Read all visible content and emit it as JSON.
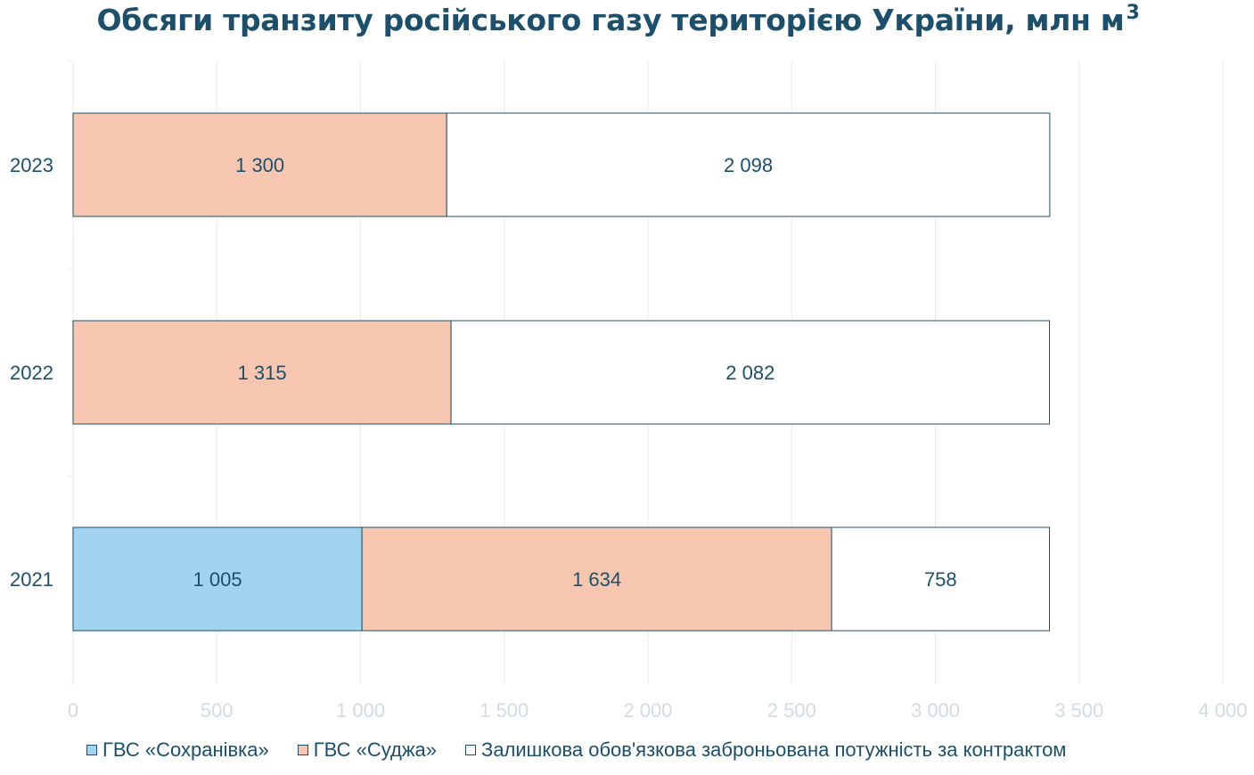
{
  "title": "Обсяги транзиту російського газу територією України, млн м",
  "title_sup": "3",
  "chart_data": {
    "type": "bar",
    "orientation": "horizontal",
    "stacked": true,
    "categories": [
      "2023",
      "2022",
      "2021"
    ],
    "series": [
      {
        "name": "ГВС «Сохранівка»",
        "color": "#a2d3ef",
        "values": [
          0,
          0,
          1005
        ],
        "labels": [
          "",
          "",
          "1 005"
        ]
      },
      {
        "name": "ГВС «Суджа»",
        "color": "#f6c6b0",
        "values": [
          1300,
          1315,
          1634
        ],
        "labels": [
          "1 300",
          "1 315",
          "1 634"
        ]
      },
      {
        "name": "Залишкова обов'язкова заброньована потужність за контрактом",
        "color": "#ffffff",
        "values": [
          2098,
          2082,
          758
        ],
        "labels": [
          "2 098",
          "2 082",
          "758"
        ]
      }
    ],
    "xlim": [
      0,
      4000
    ],
    "xticks": [
      0,
      500,
      1000,
      1500,
      2000,
      2500,
      3000,
      3500,
      4000
    ],
    "xtick_labels": [
      "0",
      "500",
      "1 000",
      "1 500",
      "2 000",
      "2 500",
      "3 000",
      "3 500",
      "4 000"
    ],
    "grid": true,
    "legend": "bottom"
  }
}
